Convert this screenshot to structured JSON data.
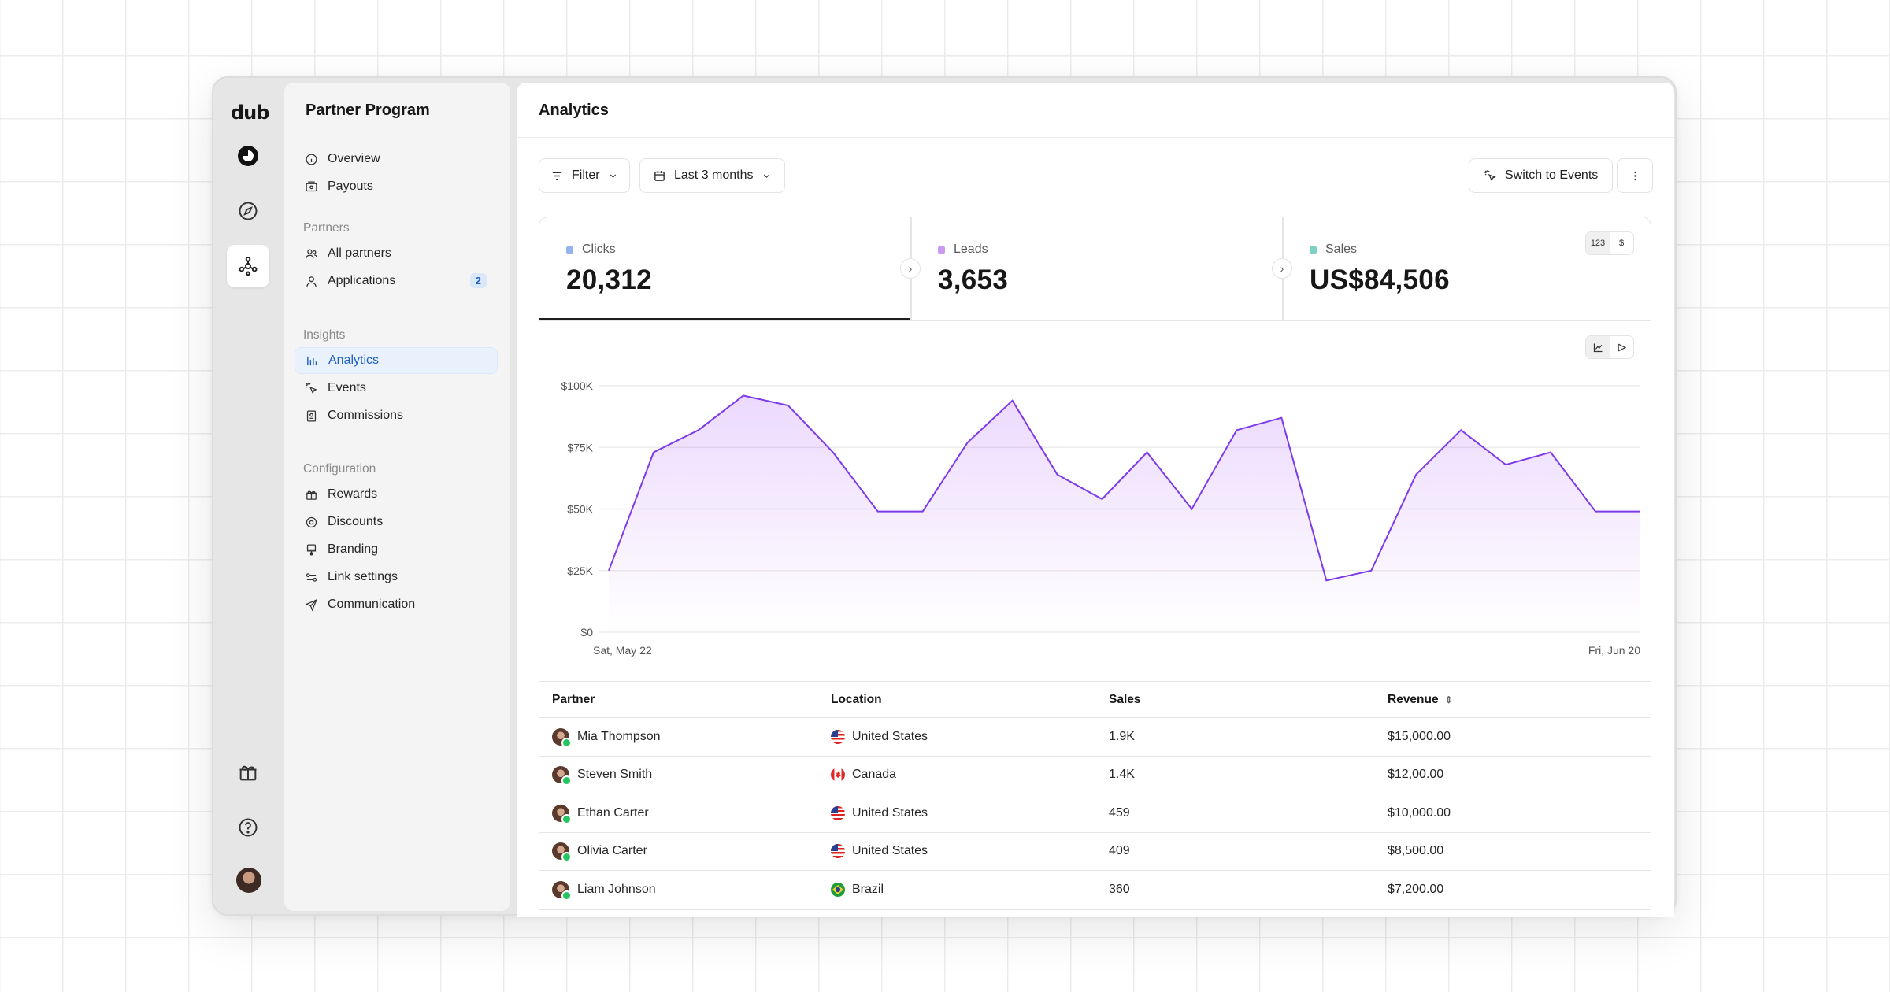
{
  "rail": {
    "logo": "dub"
  },
  "sidebar": {
    "title": "Partner Program",
    "items_top": [
      {
        "label": "Overview",
        "icon": "info-icon"
      },
      {
        "label": "Payouts",
        "icon": "money-icon"
      }
    ],
    "section_partners": "Partners",
    "items_partners": [
      {
        "label": "All partners",
        "icon": "users-icon"
      },
      {
        "label": "Applications",
        "icon": "user-icon",
        "badge": "2"
      }
    ],
    "section_insights": "Insights",
    "items_insights": [
      {
        "label": "Analytics",
        "icon": "bar-chart-icon",
        "active": true
      },
      {
        "label": "Events",
        "icon": "cursor-rays-icon"
      },
      {
        "label": "Commissions",
        "icon": "receipt-icon"
      }
    ],
    "section_config": "Configuration",
    "items_config": [
      {
        "label": "Rewards",
        "icon": "gift-icon"
      },
      {
        "label": "Discounts",
        "icon": "discount-icon"
      },
      {
        "label": "Branding",
        "icon": "brush-icon"
      },
      {
        "label": "Link settings",
        "icon": "link-settings-icon"
      },
      {
        "label": "Communication",
        "icon": "send-icon"
      }
    ]
  },
  "main": {
    "title": "Analytics",
    "filter_label": "Filter",
    "date_range_label": "Last 3 months",
    "switch_label": "Switch to Events"
  },
  "metrics": [
    {
      "label": "Clicks",
      "value": "20,312",
      "color": "#93b4ee"
    },
    {
      "label": "Leads",
      "value": "3,653",
      "color": "#c99af0"
    },
    {
      "label": "Sales",
      "value": "US$84,506",
      "color": "#7ed0c4"
    }
  ],
  "unit_toggle": {
    "count": "123",
    "currency": "$"
  },
  "chart_data": {
    "type": "area",
    "x_labels": [
      "Sat, May 22",
      "Fri, Jun 20"
    ],
    "y_ticks": [
      "$0",
      "$25K",
      "$50K",
      "$75K",
      "$100K"
    ],
    "ylim": [
      0,
      100000
    ],
    "grid": true,
    "color": "#7c3aed",
    "values": [
      25000,
      73000,
      82000,
      96000,
      92000,
      73000,
      49000,
      49000,
      77000,
      94000,
      64000,
      54000,
      73000,
      50000,
      82000,
      87000,
      21000,
      25000,
      64000,
      82000,
      68000,
      73000,
      49000,
      49000
    ]
  },
  "table": {
    "headers": {
      "partner": "Partner",
      "location": "Location",
      "sales": "Sales",
      "revenue": "Revenue"
    },
    "rows": [
      {
        "partner": "Mia Thompson",
        "location": "United States",
        "flag": "us",
        "sales": "1.9K",
        "revenue": "$15,000.00"
      },
      {
        "partner": "Steven Smith",
        "location": "Canada",
        "flag": "ca",
        "sales": "1.4K",
        "revenue": "$12,00.00"
      },
      {
        "partner": "Ethan Carter",
        "location": "United States",
        "flag": "us",
        "sales": "459",
        "revenue": "$10,000.00"
      },
      {
        "partner": "Olivia Carter",
        "location": "United States",
        "flag": "us",
        "sales": "409",
        "revenue": "$8,500.00"
      },
      {
        "partner": "Liam Johnson",
        "location": "Brazil",
        "flag": "br",
        "sales": "360",
        "revenue": "$7,200.00"
      }
    ]
  }
}
